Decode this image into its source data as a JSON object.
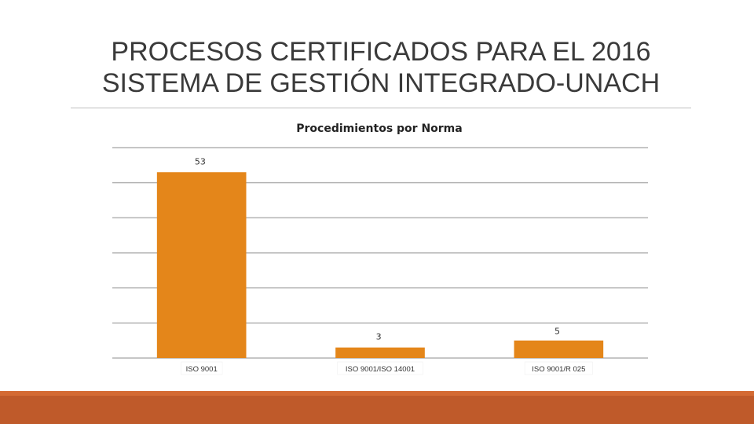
{
  "slide": {
    "title_line1": "PROCESOS CERTIFICADOS PARA EL 2016",
    "title_line2": "SISTEMA DE GESTIÓN INTEGRADO-UNACH"
  },
  "chart_data": {
    "type": "bar",
    "title": "Procedimientos por Norma",
    "categories": [
      "ISO 9001",
      "ISO 9001/ISO 14001",
      "ISO 9001/R 025"
    ],
    "values": [
      53,
      3,
      5
    ],
    "data_labels": [
      "53",
      "3",
      "5"
    ],
    "ylim": [
      0,
      60
    ],
    "grid": true,
    "bar_color": "#e4861a",
    "grid_color": "#b3b3b3"
  }
}
